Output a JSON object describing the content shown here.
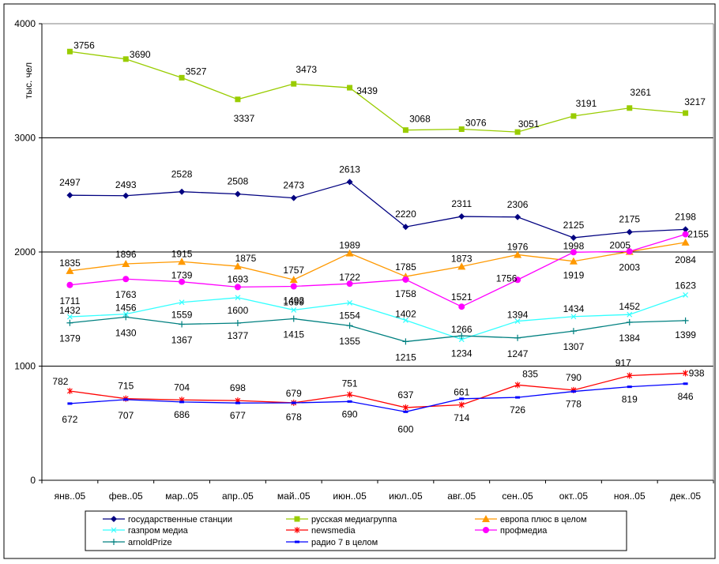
{
  "chart_data": {
    "type": "line",
    "title": "",
    "xlabel": "",
    "ylabel": "тыс. чел",
    "ylim": [
      0,
      4000
    ],
    "yticks": [
      0,
      1000,
      2000,
      3000,
      4000
    ],
    "grid": "horizontal major gridlines",
    "legend_position": "bottom",
    "categories": [
      "янв..05",
      "фев..05",
      "мар..05",
      "апр..05",
      "май..05",
      "июн..05",
      "июл..05",
      "авг..05",
      "сен..05",
      "окт..05",
      "ноя..05",
      "дек..05"
    ],
    "series": [
      {
        "name": "государственные станции",
        "color": "#000080",
        "marker": "diamond",
        "values": [
          2497,
          2493,
          2528,
          2508,
          2473,
          2613,
          2220,
          2311,
          2306,
          2125,
          2175,
          2198
        ]
      },
      {
        "name": "русская медиагруппа",
        "color": "#99CC00",
        "marker": "square",
        "values": [
          3756,
          3690,
          3527,
          3337,
          3473,
          3439,
          3068,
          3076,
          3051,
          3191,
          3261,
          3217
        ]
      },
      {
        "name": "европа плюс в целом",
        "color": "#FF9900",
        "marker": "triangle",
        "values": [
          1835,
          1896,
          1915,
          1875,
          1757,
          1989,
          1785,
          1873,
          1976,
          1919,
          2003,
          2084
        ]
      },
      {
        "name": "газпром медиа",
        "color": "#33FFFF",
        "marker": "x",
        "values": [
          1432,
          1456,
          1559,
          1600,
          1492,
          1554,
          1402,
          1234,
          1394,
          1434,
          1452,
          1623
        ]
      },
      {
        "name": "newsmedia",
        "color": "#FF0000",
        "marker": "star",
        "values": [
          782,
          715,
          704,
          698,
          679,
          751,
          637,
          661,
          835,
          790,
          917,
          938
        ]
      },
      {
        "name": "профмедиа",
        "color": "#FF00FF",
        "marker": "circle",
        "values": [
          1711,
          1763,
          1739,
          1693,
          1699,
          1722,
          1758,
          1521,
          1756,
          1998,
          2005,
          2155
        ]
      },
      {
        "name": "arnoldPrize",
        "color": "#008080",
        "marker": "plus",
        "values": [
          1379,
          1430,
          1367,
          1377,
          1415,
          1355,
          1215,
          1266,
          1247,
          1307,
          1384,
          1399
        ]
      },
      {
        "name": "радио 7 в целом",
        "color": "#0000FF",
        "marker": "dash",
        "values": [
          672,
          707,
          686,
          677,
          678,
          690,
          600,
          714,
          726,
          778,
          819,
          846
        ]
      }
    ]
  }
}
